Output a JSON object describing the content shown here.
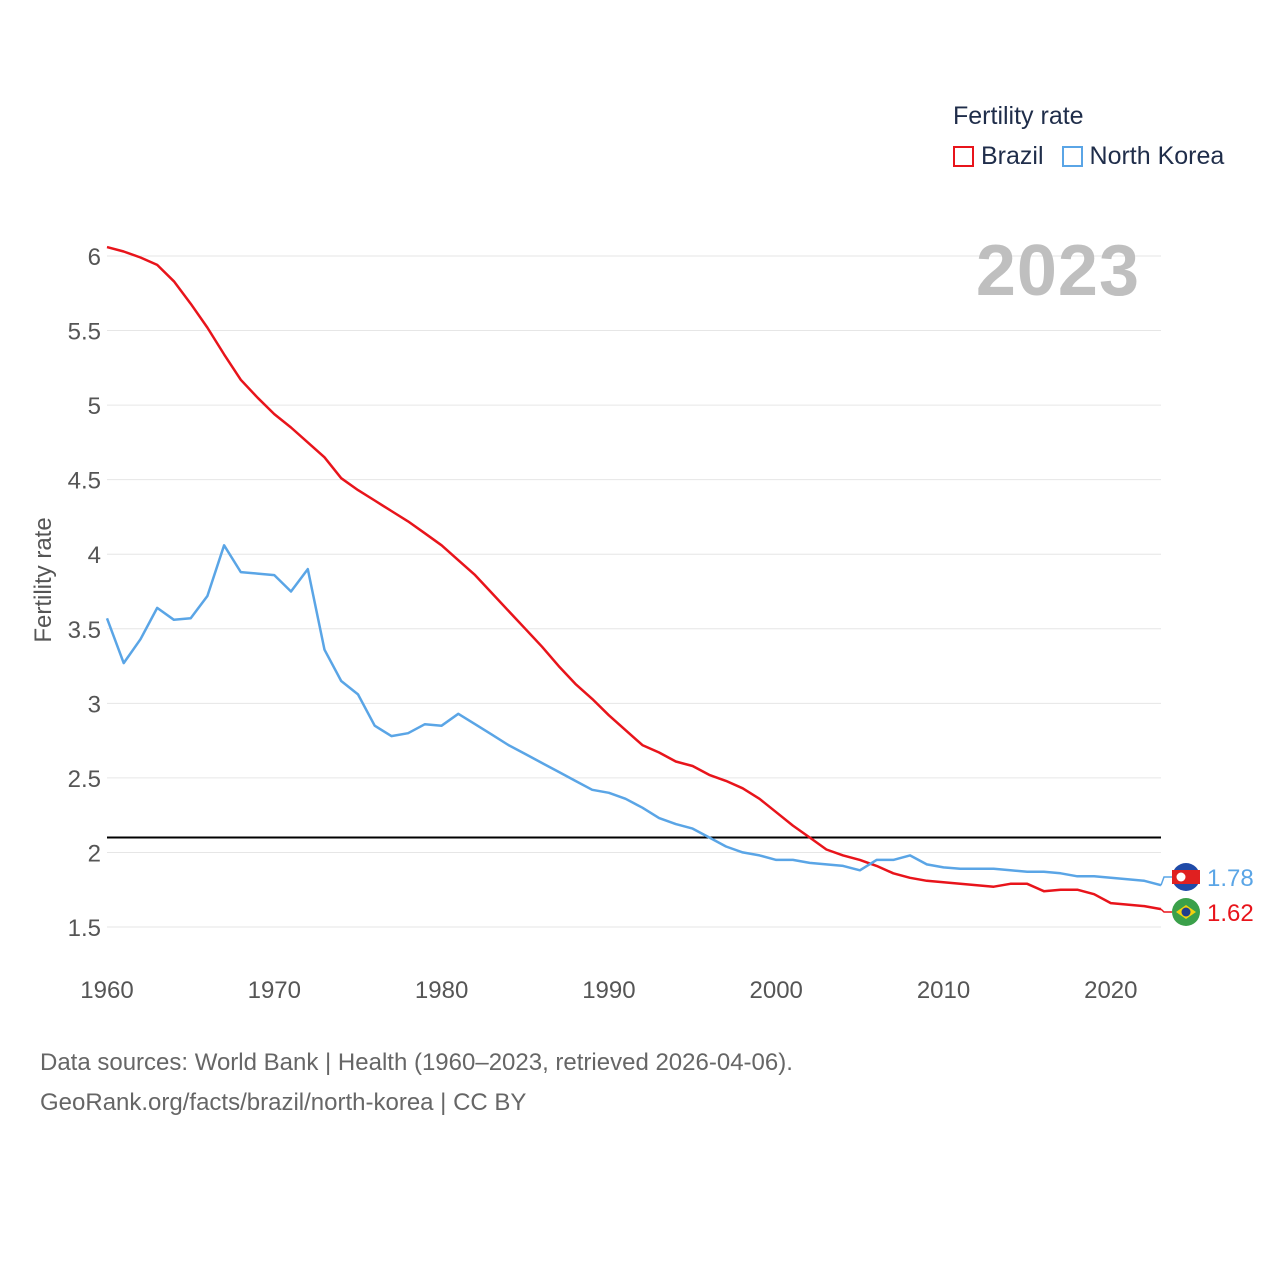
{
  "legend": {
    "title": "Fertility rate",
    "items": [
      {
        "label": "Brazil",
        "color": "#e8141b"
      },
      {
        "label": "North Korea",
        "color": "#5aa5e6"
      }
    ]
  },
  "year_label": "2023",
  "source": {
    "line1": "Data sources: World Bank | Health (1960–2023, retrieved 2026-04-06).",
    "line2": "GeoRank.org/facts/brazil/north-korea | CC BY"
  },
  "chart_data": {
    "type": "line",
    "title": "",
    "xlabel": "",
    "ylabel": "Fertility rate",
    "xlim": [
      1960,
      2023
    ],
    "ylim": [
      1.35,
      6.1
    ],
    "xticks": [
      1960,
      1970,
      1980,
      1990,
      2000,
      2010,
      2020
    ],
    "yticks": [
      1.5,
      2,
      2.5,
      3,
      3.5,
      4,
      4.5,
      5,
      5.5,
      6
    ],
    "reference_line": 2.1,
    "grid": true,
    "x": [
      1960,
      1961,
      1962,
      1963,
      1964,
      1965,
      1966,
      1967,
      1968,
      1969,
      1970,
      1971,
      1972,
      1973,
      1974,
      1975,
      1976,
      1977,
      1978,
      1979,
      1980,
      1981,
      1982,
      1983,
      1984,
      1985,
      1986,
      1987,
      1988,
      1989,
      1990,
      1991,
      1992,
      1993,
      1994,
      1995,
      1996,
      1997,
      1998,
      1999,
      2000,
      2001,
      2002,
      2003,
      2004,
      2005,
      2006,
      2007,
      2008,
      2009,
      2010,
      2011,
      2012,
      2013,
      2014,
      2015,
      2016,
      2017,
      2018,
      2019,
      2020,
      2021,
      2022,
      2023
    ],
    "series": [
      {
        "name": "Brazil",
        "color": "#e8141b",
        "end_label": "1.62",
        "values": [
          6.06,
          6.03,
          5.99,
          5.94,
          5.83,
          5.68,
          5.52,
          5.34,
          5.17,
          5.05,
          4.94,
          4.85,
          4.75,
          4.65,
          4.51,
          4.43,
          4.36,
          4.29,
          4.22,
          4.14,
          4.06,
          3.96,
          3.86,
          3.74,
          3.62,
          3.5,
          3.38,
          3.25,
          3.13,
          3.03,
          2.92,
          2.82,
          2.72,
          2.67,
          2.61,
          2.58,
          2.52,
          2.48,
          2.43,
          2.36,
          2.27,
          2.18,
          2.1,
          2.02,
          1.98,
          1.95,
          1.91,
          1.86,
          1.83,
          1.81,
          1.8,
          1.79,
          1.78,
          1.77,
          1.79,
          1.79,
          1.74,
          1.75,
          1.75,
          1.72,
          1.66,
          1.65,
          1.64,
          1.62
        ]
      },
      {
        "name": "North Korea",
        "color": "#5aa5e6",
        "end_label": "1.78",
        "values": [
          3.57,
          3.27,
          3.43,
          3.64,
          3.56,
          3.57,
          3.72,
          4.06,
          3.88,
          3.87,
          3.86,
          3.75,
          3.9,
          3.36,
          3.15,
          3.06,
          2.85,
          2.78,
          2.8,
          2.86,
          2.85,
          2.93,
          2.86,
          2.79,
          2.72,
          2.66,
          2.6,
          2.54,
          2.48,
          2.42,
          2.4,
          2.36,
          2.3,
          2.23,
          2.19,
          2.16,
          2.1,
          2.04,
          2.0,
          1.98,
          1.95,
          1.95,
          1.93,
          1.92,
          1.91,
          1.88,
          1.95,
          1.95,
          1.98,
          1.92,
          1.9,
          1.89,
          1.89,
          1.89,
          1.88,
          1.87,
          1.87,
          1.86,
          1.84,
          1.84,
          1.83,
          1.82,
          1.81,
          1.78
        ]
      }
    ]
  }
}
